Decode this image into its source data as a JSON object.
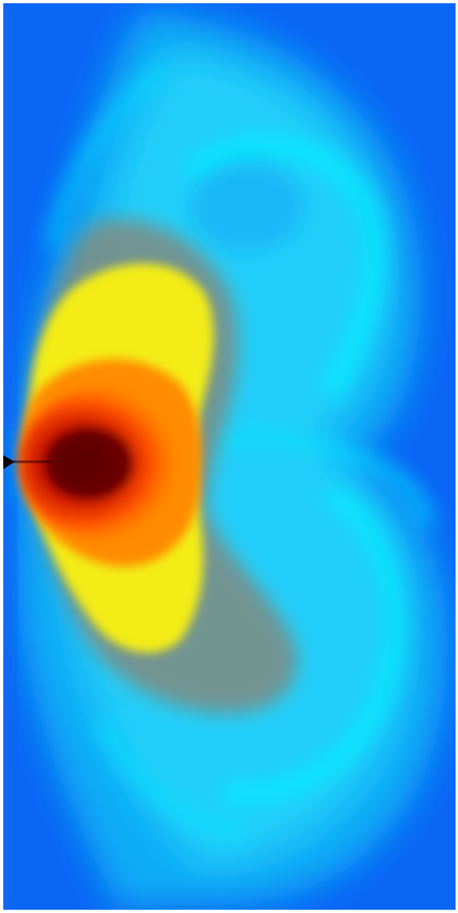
{
  "image": {
    "subject": "density-field-simulation",
    "colormap": {
      "background": "#0a66f5",
      "low": "#10b8f8",
      "mid_low": "#00eaff",
      "mid": "#7a8a86",
      "mid_high": "#f2ee10",
      "high": "#ff7a00",
      "higher": "#e01000",
      "peak": "#5a0000",
      "source": "#000000"
    }
  }
}
